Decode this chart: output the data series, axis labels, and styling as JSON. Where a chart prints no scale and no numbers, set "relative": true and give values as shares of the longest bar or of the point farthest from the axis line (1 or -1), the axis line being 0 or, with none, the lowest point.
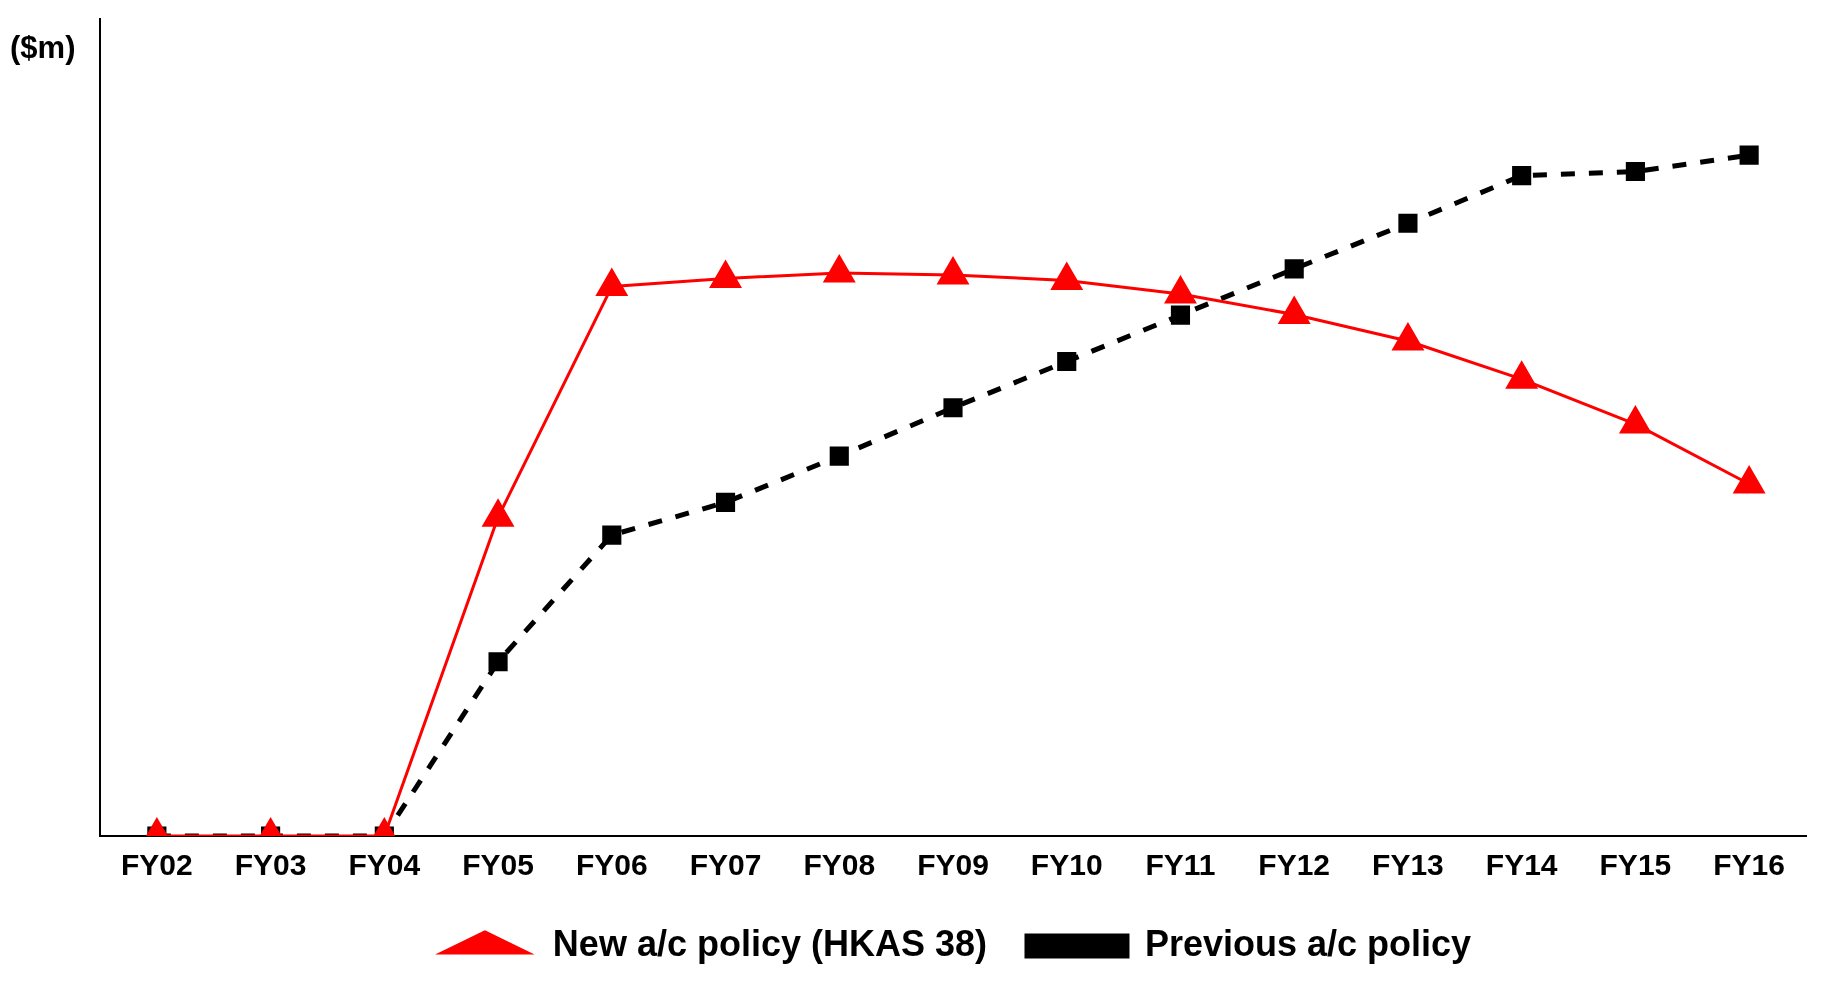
{
  "chart_data": {
    "type": "line",
    "ylabel": "($m)",
    "relative": true,
    "legend": "bottom",
    "grid": false,
    "categories": [
      "FY02",
      "FY03",
      "FY04",
      "FY05",
      "FY06",
      "FY07",
      "FY08",
      "FY09",
      "FY10",
      "FY11",
      "FY12",
      "FY13",
      "FY14",
      "FY15",
      "FY16"
    ],
    "series": [
      {
        "name": "New a/c policy (HKAS 38)",
        "color": "#ff0000",
        "marker": "triangle",
        "line_style": "solid",
        "values": [
          0,
          0,
          0,
          0.468,
          0.807,
          0.819,
          0.827,
          0.824,
          0.816,
          0.796,
          0.766,
          0.727,
          0.671,
          0.605,
          0.517
        ]
      },
      {
        "name": "Previous a/c policy",
        "color": "#000000",
        "marker": "square",
        "line_style": "dashed",
        "values": [
          0,
          0,
          0,
          0.256,
          0.442,
          0.49,
          0.558,
          0.629,
          0.697,
          0.765,
          0.833,
          0.9,
          0.97,
          0.976,
          1
        ]
      }
    ]
  }
}
